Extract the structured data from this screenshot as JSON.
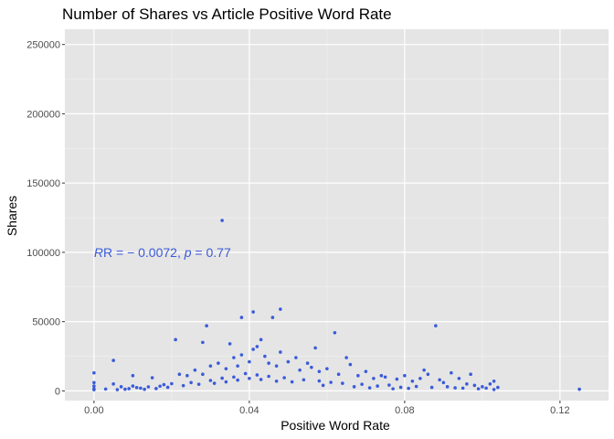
{
  "chart_data": {
    "type": "scatter",
    "title": "Number of Shares vs Article Positive Word Rate",
    "xlabel": "Positive Word Rate",
    "ylabel": "Shares",
    "xlim": [
      -0.0075,
      0.1325
    ],
    "ylim": [
      -7000,
      261000
    ],
    "x_ticks": [
      0.0,
      0.04,
      0.08,
      0.12
    ],
    "x_tick_labels": [
      "0.00",
      "0.04",
      "0.08",
      "0.12"
    ],
    "y_ticks": [
      0,
      50000,
      100000,
      150000,
      200000,
      250000
    ],
    "y_tick_labels": [
      "0",
      "50000",
      "100000",
      "150000",
      "200000",
      "250000"
    ],
    "grid": true,
    "point_color": "#3a5bd9",
    "panel_color": "#e5e5e5",
    "annotation": {
      "text_prefix": "R = − 0.0072, ",
      "text_p": "p",
      "text_suffix": " = 0.77",
      "x": 0.0,
      "y": 100000
    },
    "series": [
      {
        "points": [
          [
            0.0,
            13000
          ],
          [
            0.0,
            6000
          ],
          [
            0.0,
            3500
          ],
          [
            0.0,
            1500
          ],
          [
            0.0,
            800
          ],
          [
            0.005,
            22000
          ],
          [
            0.005,
            5000
          ],
          [
            0.007,
            3000
          ],
          [
            0.008,
            1200
          ],
          [
            0.01,
            11000
          ],
          [
            0.01,
            3500
          ],
          [
            0.012,
            2000
          ],
          [
            0.015,
            9500
          ],
          [
            0.018,
            4500
          ],
          [
            0.021,
            37000
          ],
          [
            0.022,
            12000
          ],
          [
            0.024,
            11000
          ],
          [
            0.026,
            15000
          ],
          [
            0.028,
            12000
          ],
          [
            0.029,
            47000
          ],
          [
            0.028,
            35000
          ],
          [
            0.03,
            18000
          ],
          [
            0.032,
            20000
          ],
          [
            0.033,
            123000
          ],
          [
            0.034,
            16000
          ],
          [
            0.035,
            34000
          ],
          [
            0.036,
            24000
          ],
          [
            0.037,
            18000
          ],
          [
            0.038,
            26000
          ],
          [
            0.038,
            53000
          ],
          [
            0.04,
            21000
          ],
          [
            0.041,
            57000
          ],
          [
            0.041,
            30000
          ],
          [
            0.042,
            32000
          ],
          [
            0.043,
            37000
          ],
          [
            0.044,
            25000
          ],
          [
            0.045,
            20000
          ],
          [
            0.046,
            53000
          ],
          [
            0.047,
            18000
          ],
          [
            0.048,
            59000
          ],
          [
            0.048,
            28000
          ],
          [
            0.05,
            21000
          ],
          [
            0.052,
            24000
          ],
          [
            0.053,
            15000
          ],
          [
            0.055,
            20000
          ],
          [
            0.056,
            17000
          ],
          [
            0.057,
            31000
          ],
          [
            0.058,
            14000
          ],
          [
            0.06,
            16000
          ],
          [
            0.062,
            42000
          ],
          [
            0.063,
            12000
          ],
          [
            0.065,
            24000
          ],
          [
            0.066,
            19000
          ],
          [
            0.068,
            11000
          ],
          [
            0.07,
            14000
          ],
          [
            0.072,
            9000
          ],
          [
            0.074,
            11000
          ],
          [
            0.075,
            10000
          ],
          [
            0.078,
            8500
          ],
          [
            0.08,
            11000
          ],
          [
            0.082,
            7000
          ],
          [
            0.084,
            9000
          ],
          [
            0.085,
            15000
          ],
          [
            0.086,
            12000
          ],
          [
            0.088,
            47000
          ],
          [
            0.089,
            8000
          ],
          [
            0.09,
            6000
          ],
          [
            0.092,
            13000
          ],
          [
            0.094,
            9000
          ],
          [
            0.096,
            5000
          ],
          [
            0.097,
            12000
          ],
          [
            0.098,
            4000
          ],
          [
            0.1,
            3000
          ],
          [
            0.101,
            2000
          ],
          [
            0.102,
            5000
          ],
          [
            0.103,
            7000
          ],
          [
            0.104,
            2500
          ],
          [
            0.125,
            1200
          ],
          [
            0.103,
            1000
          ],
          [
            0.099,
            1500
          ],
          [
            0.095,
            2000
          ],
          [
            0.093,
            2200
          ],
          [
            0.091,
            3000
          ],
          [
            0.087,
            2500
          ],
          [
            0.083,
            3200
          ],
          [
            0.081,
            1800
          ],
          [
            0.079,
            2600
          ],
          [
            0.077,
            1500
          ],
          [
            0.076,
            4200
          ],
          [
            0.073,
            3500
          ],
          [
            0.071,
            2200
          ],
          [
            0.069,
            4800
          ],
          [
            0.067,
            3000
          ],
          [
            0.064,
            5500
          ],
          [
            0.061,
            6200
          ],
          [
            0.059,
            4000
          ],
          [
            0.058,
            7200
          ],
          [
            0.054,
            8000
          ],
          [
            0.051,
            6500
          ],
          [
            0.049,
            9500
          ],
          [
            0.047,
            7000
          ],
          [
            0.045,
            10500
          ],
          [
            0.043,
            8200
          ],
          [
            0.042,
            11500
          ],
          [
            0.04,
            9000
          ],
          [
            0.039,
            12500
          ],
          [
            0.037,
            7800
          ],
          [
            0.036,
            10000
          ],
          [
            0.034,
            6500
          ],
          [
            0.033,
            9200
          ],
          [
            0.031,
            5500
          ],
          [
            0.03,
            7500
          ],
          [
            0.027,
            4800
          ],
          [
            0.025,
            6000
          ],
          [
            0.023,
            3800
          ],
          [
            0.02,
            5200
          ],
          [
            0.019,
            2600
          ],
          [
            0.017,
            3400
          ],
          [
            0.016,
            1700
          ],
          [
            0.014,
            2900
          ],
          [
            0.013,
            1100
          ],
          [
            0.011,
            2400
          ],
          [
            0.009,
            1600
          ],
          [
            0.006,
            900
          ],
          [
            0.003,
            1300
          ]
        ]
      }
    ]
  }
}
